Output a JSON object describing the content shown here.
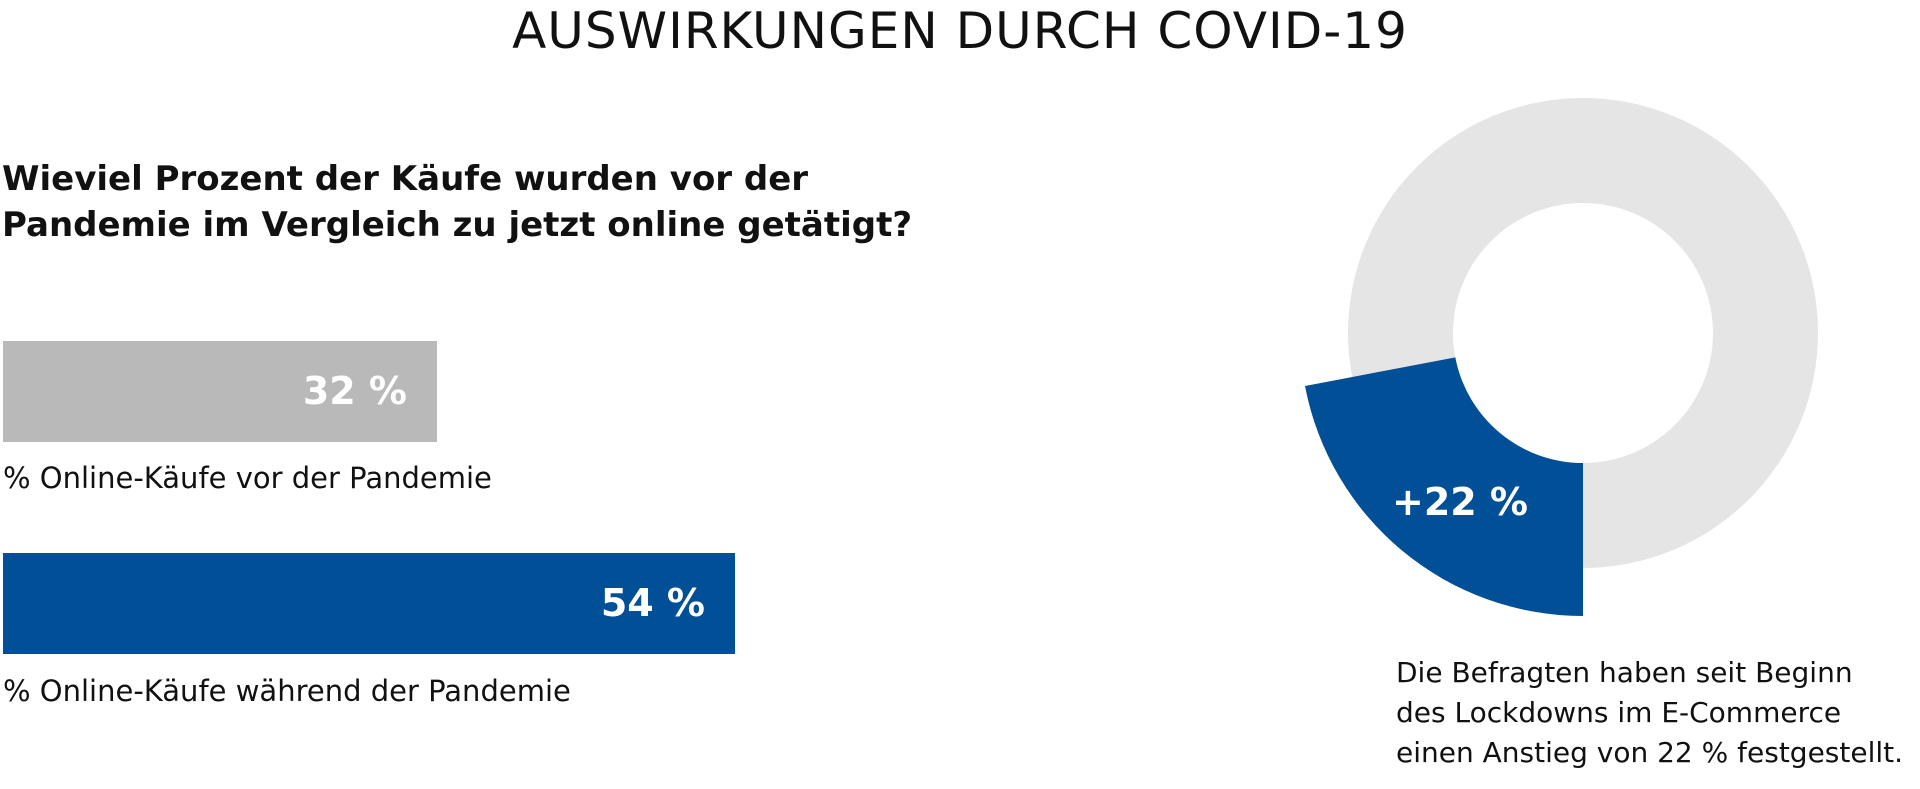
{
  "title": "AUSWIRKUNGEN DURCH COVID-19",
  "question": [
    "Wieviel Prozent der Käufe wurden vor der",
    "Pandemie im Vergleich zu jetzt online getätigt?"
  ],
  "colors": {
    "before": "#b9b9b9",
    "during": "#004f97",
    "ring": "#e5e5e5",
    "text": "#111111"
  },
  "chart_data": [
    {
      "type": "bar",
      "orientation": "horizontal",
      "categories": [
        "% Online-Käufe vor der Pandemie",
        "% Online-Käufe während der Pandemie"
      ],
      "values": [
        32,
        54
      ],
      "value_labels": [
        "32 %",
        "54 %"
      ],
      "xlim": [
        0,
        100
      ]
    },
    {
      "type": "pie",
      "variant": "donut",
      "highlight_value": 22,
      "value_label": "+22 %",
      "unit": "%"
    }
  ],
  "note": [
    "Die Befragten haben seit Beginn",
    "des Lockdowns im E-Commerce",
    "einen Anstieg von 22 % festgestellt."
  ]
}
